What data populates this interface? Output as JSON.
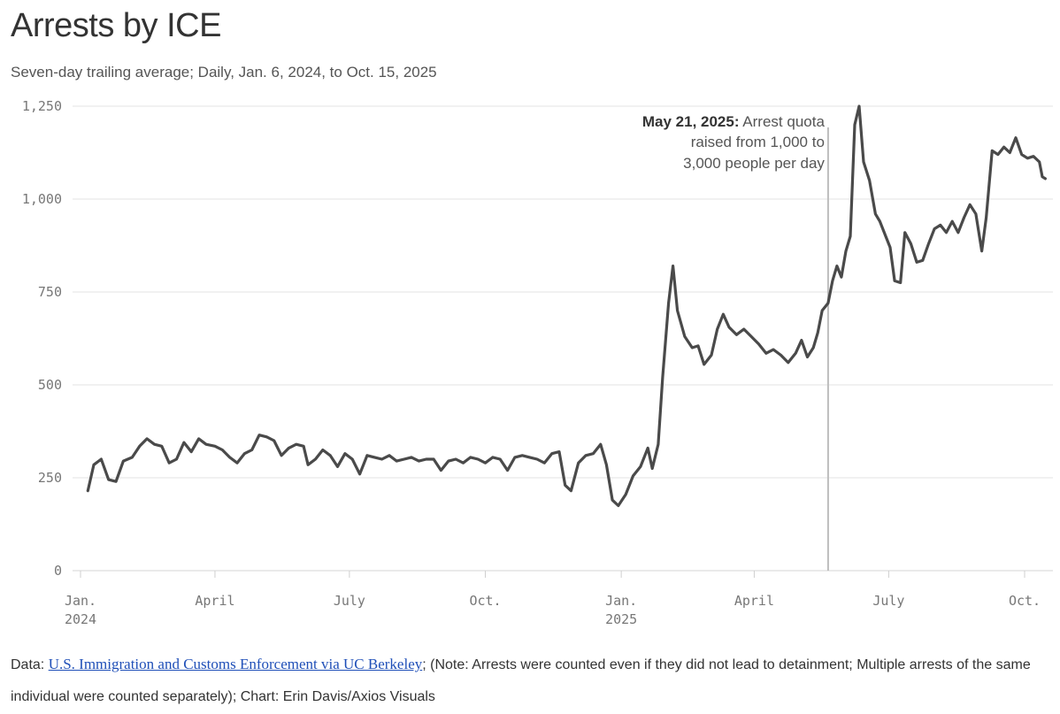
{
  "header": {
    "title": "Arrests by ICE",
    "subtitle": "Seven-day trailing average; Daily, Jan. 6, 2024, to Oct. 15, 2025"
  },
  "footer": {
    "data_label": "Data: ",
    "source_link": "U.S. Immigration and Customs Enforcement via UC Berkeley",
    "note": "; (Note: Arrests were counted even if they did not lead to detainment; Multiple arrests of the same individual were counted separately); Chart: Erin Davis/Axios Visuals"
  },
  "colors": {
    "line": "#4a4a4a",
    "annotation_line": "#bdbdbd",
    "grid": "#e3e3e3",
    "link": "#1f4fb8"
  },
  "chart_data": {
    "type": "line",
    "title": "Arrests by ICE",
    "xlabel": "",
    "ylabel": "",
    "x_start": "2024-01-06",
    "x_end": "2025-10-15",
    "ylim": [
      0,
      1250
    ],
    "yticks": [
      {
        "value": 0,
        "label": "0"
      },
      {
        "value": 250,
        "label": "250"
      },
      {
        "value": 500,
        "label": "500"
      },
      {
        "value": 750,
        "label": "750"
      },
      {
        "value": 1000,
        "label": "1,000"
      },
      {
        "value": 1250,
        "label": "1,250"
      }
    ],
    "xticks": [
      {
        "date": "2024-01-01",
        "label": "Jan.",
        "sublabel": "2024"
      },
      {
        "date": "2024-04-01",
        "label": "April",
        "sublabel": ""
      },
      {
        "date": "2024-07-01",
        "label": "July",
        "sublabel": ""
      },
      {
        "date": "2024-10-01",
        "label": "Oct.",
        "sublabel": ""
      },
      {
        "date": "2025-01-01",
        "label": "Jan.",
        "sublabel": "2025"
      },
      {
        "date": "2025-04-01",
        "label": "April",
        "sublabel": ""
      },
      {
        "date": "2025-07-01",
        "label": "July",
        "sublabel": ""
      },
      {
        "date": "2025-10-01",
        "label": "Oct.",
        "sublabel": ""
      }
    ],
    "annotation": {
      "date": "2025-05-21",
      "bold": "May 21, 2025:",
      "line1_rest": " Arrest quota",
      "line2": "raised from 1,000 to",
      "line3": "3,000 people per day"
    },
    "series": [
      {
        "name": "Arrests (7-day trailing average)",
        "points": [
          [
            "2024-01-06",
            215
          ],
          [
            "2024-01-10",
            285
          ],
          [
            "2024-01-15",
            300
          ],
          [
            "2024-01-20",
            245
          ],
          [
            "2024-01-25",
            240
          ],
          [
            "2024-01-30",
            295
          ],
          [
            "2024-02-05",
            305
          ],
          [
            "2024-02-10",
            335
          ],
          [
            "2024-02-15",
            355
          ],
          [
            "2024-02-20",
            340
          ],
          [
            "2024-02-25",
            335
          ],
          [
            "2024-03-01",
            290
          ],
          [
            "2024-03-06",
            300
          ],
          [
            "2024-03-11",
            345
          ],
          [
            "2024-03-16",
            320
          ],
          [
            "2024-03-21",
            355
          ],
          [
            "2024-03-26",
            340
          ],
          [
            "2024-04-01",
            335
          ],
          [
            "2024-04-06",
            325
          ],
          [
            "2024-04-11",
            305
          ],
          [
            "2024-04-16",
            290
          ],
          [
            "2024-04-21",
            315
          ],
          [
            "2024-04-26",
            325
          ],
          [
            "2024-05-01",
            365
          ],
          [
            "2024-05-06",
            360
          ],
          [
            "2024-05-11",
            350
          ],
          [
            "2024-05-16",
            310
          ],
          [
            "2024-05-21",
            330
          ],
          [
            "2024-05-26",
            340
          ],
          [
            "2024-05-31",
            335
          ],
          [
            "2024-06-03",
            285
          ],
          [
            "2024-06-08",
            300
          ],
          [
            "2024-06-13",
            325
          ],
          [
            "2024-06-18",
            310
          ],
          [
            "2024-06-23",
            280
          ],
          [
            "2024-06-28",
            315
          ],
          [
            "2024-07-03",
            300
          ],
          [
            "2024-07-08",
            260
          ],
          [
            "2024-07-13",
            310
          ],
          [
            "2024-07-18",
            305
          ],
          [
            "2024-07-23",
            300
          ],
          [
            "2024-07-28",
            310
          ],
          [
            "2024-08-02",
            295
          ],
          [
            "2024-08-07",
            300
          ],
          [
            "2024-08-12",
            305
          ],
          [
            "2024-08-17",
            295
          ],
          [
            "2024-08-22",
            300
          ],
          [
            "2024-08-27",
            300
          ],
          [
            "2024-09-01",
            270
          ],
          [
            "2024-09-06",
            295
          ],
          [
            "2024-09-11",
            300
          ],
          [
            "2024-09-16",
            290
          ],
          [
            "2024-09-21",
            305
          ],
          [
            "2024-09-26",
            300
          ],
          [
            "2024-10-01",
            290
          ],
          [
            "2024-10-06",
            305
          ],
          [
            "2024-10-11",
            300
          ],
          [
            "2024-10-16",
            270
          ],
          [
            "2024-10-21",
            305
          ],
          [
            "2024-10-26",
            310
          ],
          [
            "2024-10-31",
            305
          ],
          [
            "2024-11-05",
            300
          ],
          [
            "2024-11-10",
            290
          ],
          [
            "2024-11-15",
            315
          ],
          [
            "2024-11-20",
            320
          ],
          [
            "2024-11-24",
            230
          ],
          [
            "2024-11-28",
            215
          ],
          [
            "2024-12-03",
            290
          ],
          [
            "2024-12-08",
            310
          ],
          [
            "2024-12-13",
            315
          ],
          [
            "2024-12-18",
            340
          ],
          [
            "2024-12-22",
            285
          ],
          [
            "2024-12-26",
            190
          ],
          [
            "2024-12-30",
            175
          ],
          [
            "2025-01-04",
            205
          ],
          [
            "2025-01-09",
            255
          ],
          [
            "2025-01-14",
            280
          ],
          [
            "2025-01-19",
            330
          ],
          [
            "2025-01-22",
            275
          ],
          [
            "2025-01-26",
            340
          ],
          [
            "2025-01-29",
            520
          ],
          [
            "2025-02-02",
            720
          ],
          [
            "2025-02-05",
            820
          ],
          [
            "2025-02-08",
            700
          ],
          [
            "2025-02-13",
            630
          ],
          [
            "2025-02-18",
            600
          ],
          [
            "2025-02-22",
            605
          ],
          [
            "2025-02-26",
            555
          ],
          [
            "2025-03-03",
            580
          ],
          [
            "2025-03-07",
            650
          ],
          [
            "2025-03-11",
            690
          ],
          [
            "2025-03-15",
            655
          ],
          [
            "2025-03-20",
            635
          ],
          [
            "2025-03-25",
            650
          ],
          [
            "2025-03-30",
            630
          ],
          [
            "2025-04-04",
            610
          ],
          [
            "2025-04-09",
            585
          ],
          [
            "2025-04-14",
            595
          ],
          [
            "2025-04-19",
            580
          ],
          [
            "2025-04-24",
            560
          ],
          [
            "2025-04-29",
            585
          ],
          [
            "2025-05-03",
            620
          ],
          [
            "2025-05-07",
            575
          ],
          [
            "2025-05-11",
            600
          ],
          [
            "2025-05-14",
            640
          ],
          [
            "2025-05-17",
            700
          ],
          [
            "2025-05-21",
            720
          ],
          [
            "2025-05-24",
            780
          ],
          [
            "2025-05-27",
            820
          ],
          [
            "2025-05-30",
            790
          ],
          [
            "2025-06-02",
            860
          ],
          [
            "2025-06-05",
            900
          ],
          [
            "2025-06-08",
            1200
          ],
          [
            "2025-06-11",
            1250
          ],
          [
            "2025-06-14",
            1100
          ],
          [
            "2025-06-18",
            1050
          ],
          [
            "2025-06-22",
            960
          ],
          [
            "2025-06-25",
            940
          ],
          [
            "2025-06-29",
            900
          ],
          [
            "2025-07-02",
            870
          ],
          [
            "2025-07-05",
            780
          ],
          [
            "2025-07-09",
            775
          ],
          [
            "2025-07-12",
            910
          ],
          [
            "2025-07-16",
            880
          ],
          [
            "2025-07-20",
            830
          ],
          [
            "2025-07-24",
            835
          ],
          [
            "2025-07-28",
            880
          ],
          [
            "2025-08-01",
            920
          ],
          [
            "2025-08-05",
            930
          ],
          [
            "2025-08-09",
            910
          ],
          [
            "2025-08-13",
            940
          ],
          [
            "2025-08-17",
            910
          ],
          [
            "2025-08-21",
            950
          ],
          [
            "2025-08-25",
            985
          ],
          [
            "2025-08-29",
            960
          ],
          [
            "2025-09-02",
            860
          ],
          [
            "2025-09-05",
            950
          ],
          [
            "2025-09-09",
            1130
          ],
          [
            "2025-09-13",
            1120
          ],
          [
            "2025-09-17",
            1140
          ],
          [
            "2025-09-21",
            1125
          ],
          [
            "2025-09-25",
            1165
          ],
          [
            "2025-09-29",
            1120
          ],
          [
            "2025-10-03",
            1110
          ],
          [
            "2025-10-07",
            1115
          ],
          [
            "2025-10-11",
            1100
          ],
          [
            "2025-10-13",
            1060
          ],
          [
            "2025-10-15",
            1055
          ]
        ]
      }
    ]
  }
}
